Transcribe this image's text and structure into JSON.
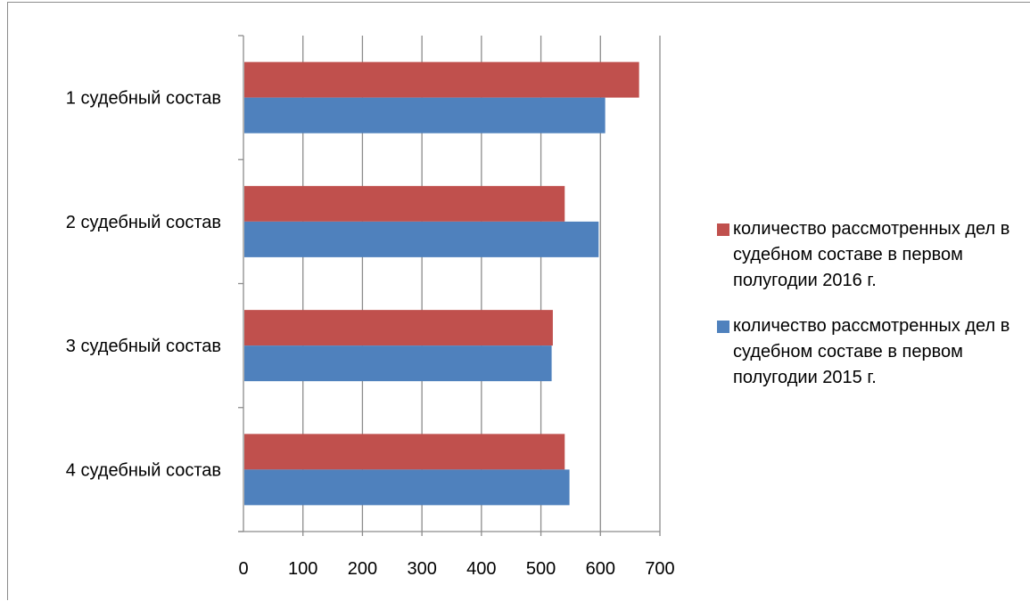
{
  "chart_data": {
    "type": "bar",
    "orientation": "horizontal",
    "categories": [
      "1 судебный состав",
      "2 судебный состав",
      "3 судебный состав",
      "4 судебный состав"
    ],
    "series": [
      {
        "name": "количество рассмотренных дел в судебном составе в первом полугодии 2016 г.",
        "color": "#C0504D",
        "values": [
          665,
          540,
          520,
          540
        ]
      },
      {
        "name": "количество рассмотренных дел в судебном составе в первом полугодии  2015 г.",
        "color": "#4F81BD",
        "values": [
          608,
          597,
          518,
          548
        ]
      }
    ],
    "xlim": [
      0,
      700
    ],
    "xticks": [
      0,
      100,
      200,
      300,
      400,
      500,
      600,
      700
    ],
    "grid": true,
    "legend_position": "right"
  }
}
